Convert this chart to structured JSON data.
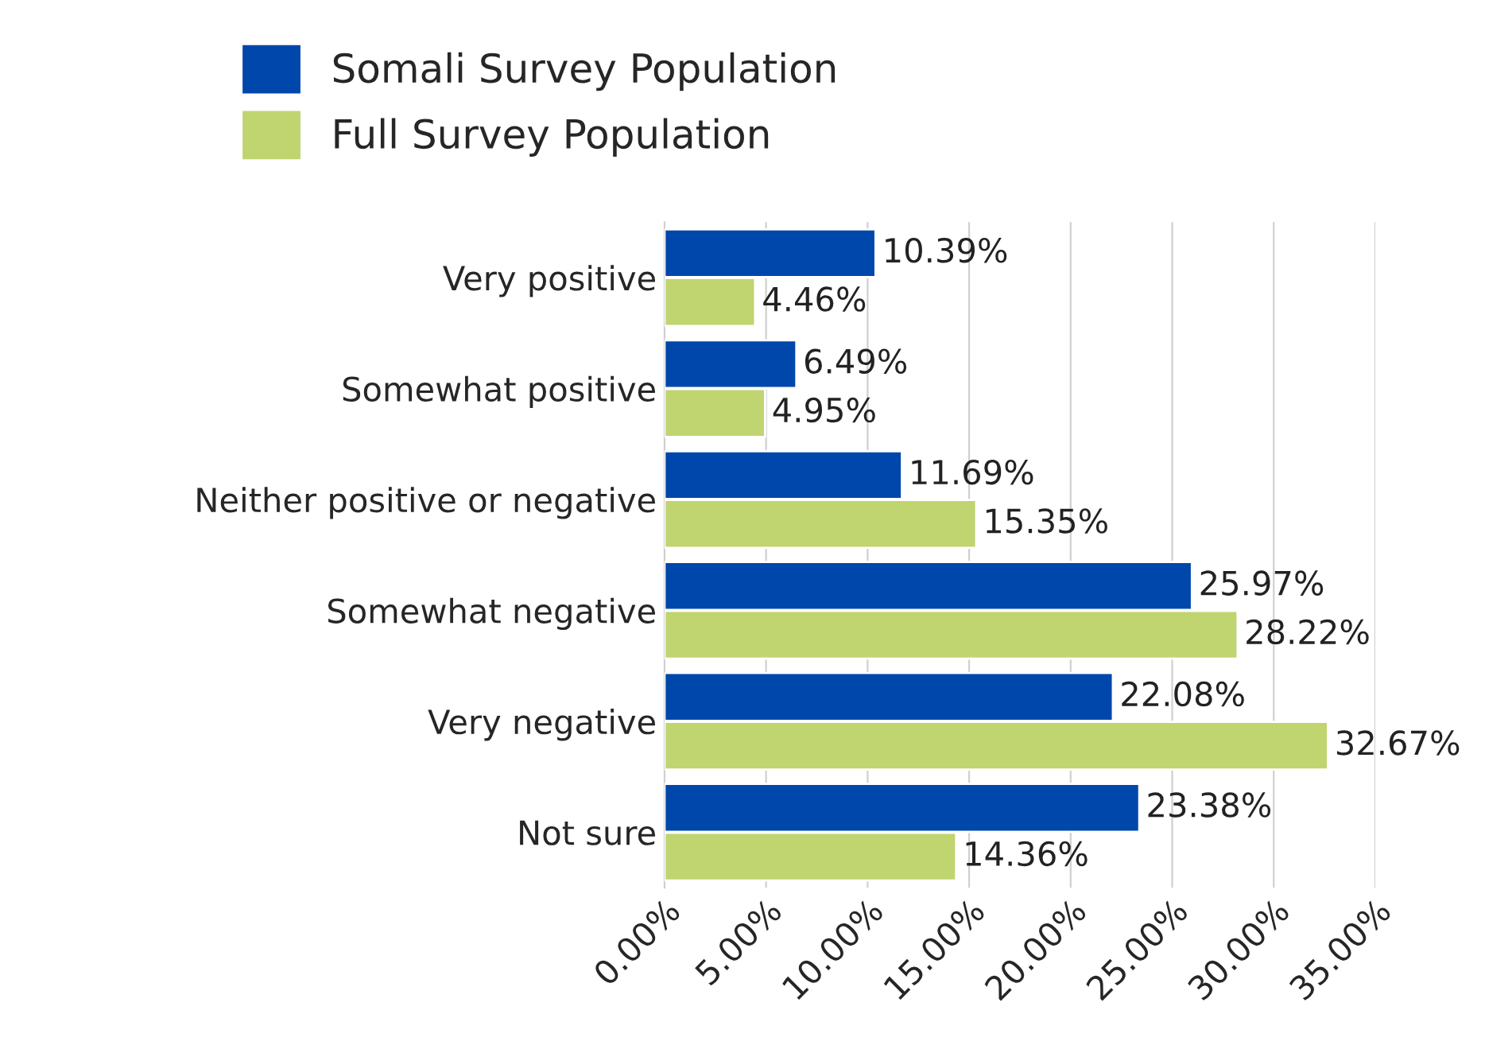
{
  "chart_data": {
    "type": "bar",
    "orientation": "horizontal",
    "categories": [
      "Very positive",
      "Somewhat positive",
      "Neither positive or negative",
      "Somewhat negative",
      "Very negative",
      "Not sure"
    ],
    "series": [
      {
        "name": "Somali Survey Population",
        "color": "#0047ab",
        "values": [
          10.39,
          6.49,
          11.69,
          25.97,
          22.08,
          23.38
        ],
        "value_labels": [
          "10.39%",
          "6.49%",
          "11.69%",
          "25.97%",
          "22.08%",
          "23.38%"
        ]
      },
      {
        "name": "Full Survey Population",
        "color": "#c0d470",
        "values": [
          4.46,
          4.95,
          15.35,
          28.22,
          32.67,
          14.36
        ],
        "value_labels": [
          "4.46%",
          "4.95%",
          "15.35%",
          "28.22%",
          "32.67%",
          "14.36%"
        ]
      }
    ],
    "xlim": [
      0,
      35
    ],
    "xticks": [
      {
        "value": 0,
        "label": "0.00%"
      },
      {
        "value": 5,
        "label": "5.00%"
      },
      {
        "value": 10,
        "label": "10.00%"
      },
      {
        "value": 15,
        "label": "15.00%"
      },
      {
        "value": 20,
        "label": "20.00%"
      },
      {
        "value": 25,
        "label": "25.00%"
      },
      {
        "value": 30,
        "label": "30.00%"
      },
      {
        "value": 35,
        "label": "35.00%"
      }
    ],
    "grid": "x",
    "legend": "top left"
  }
}
